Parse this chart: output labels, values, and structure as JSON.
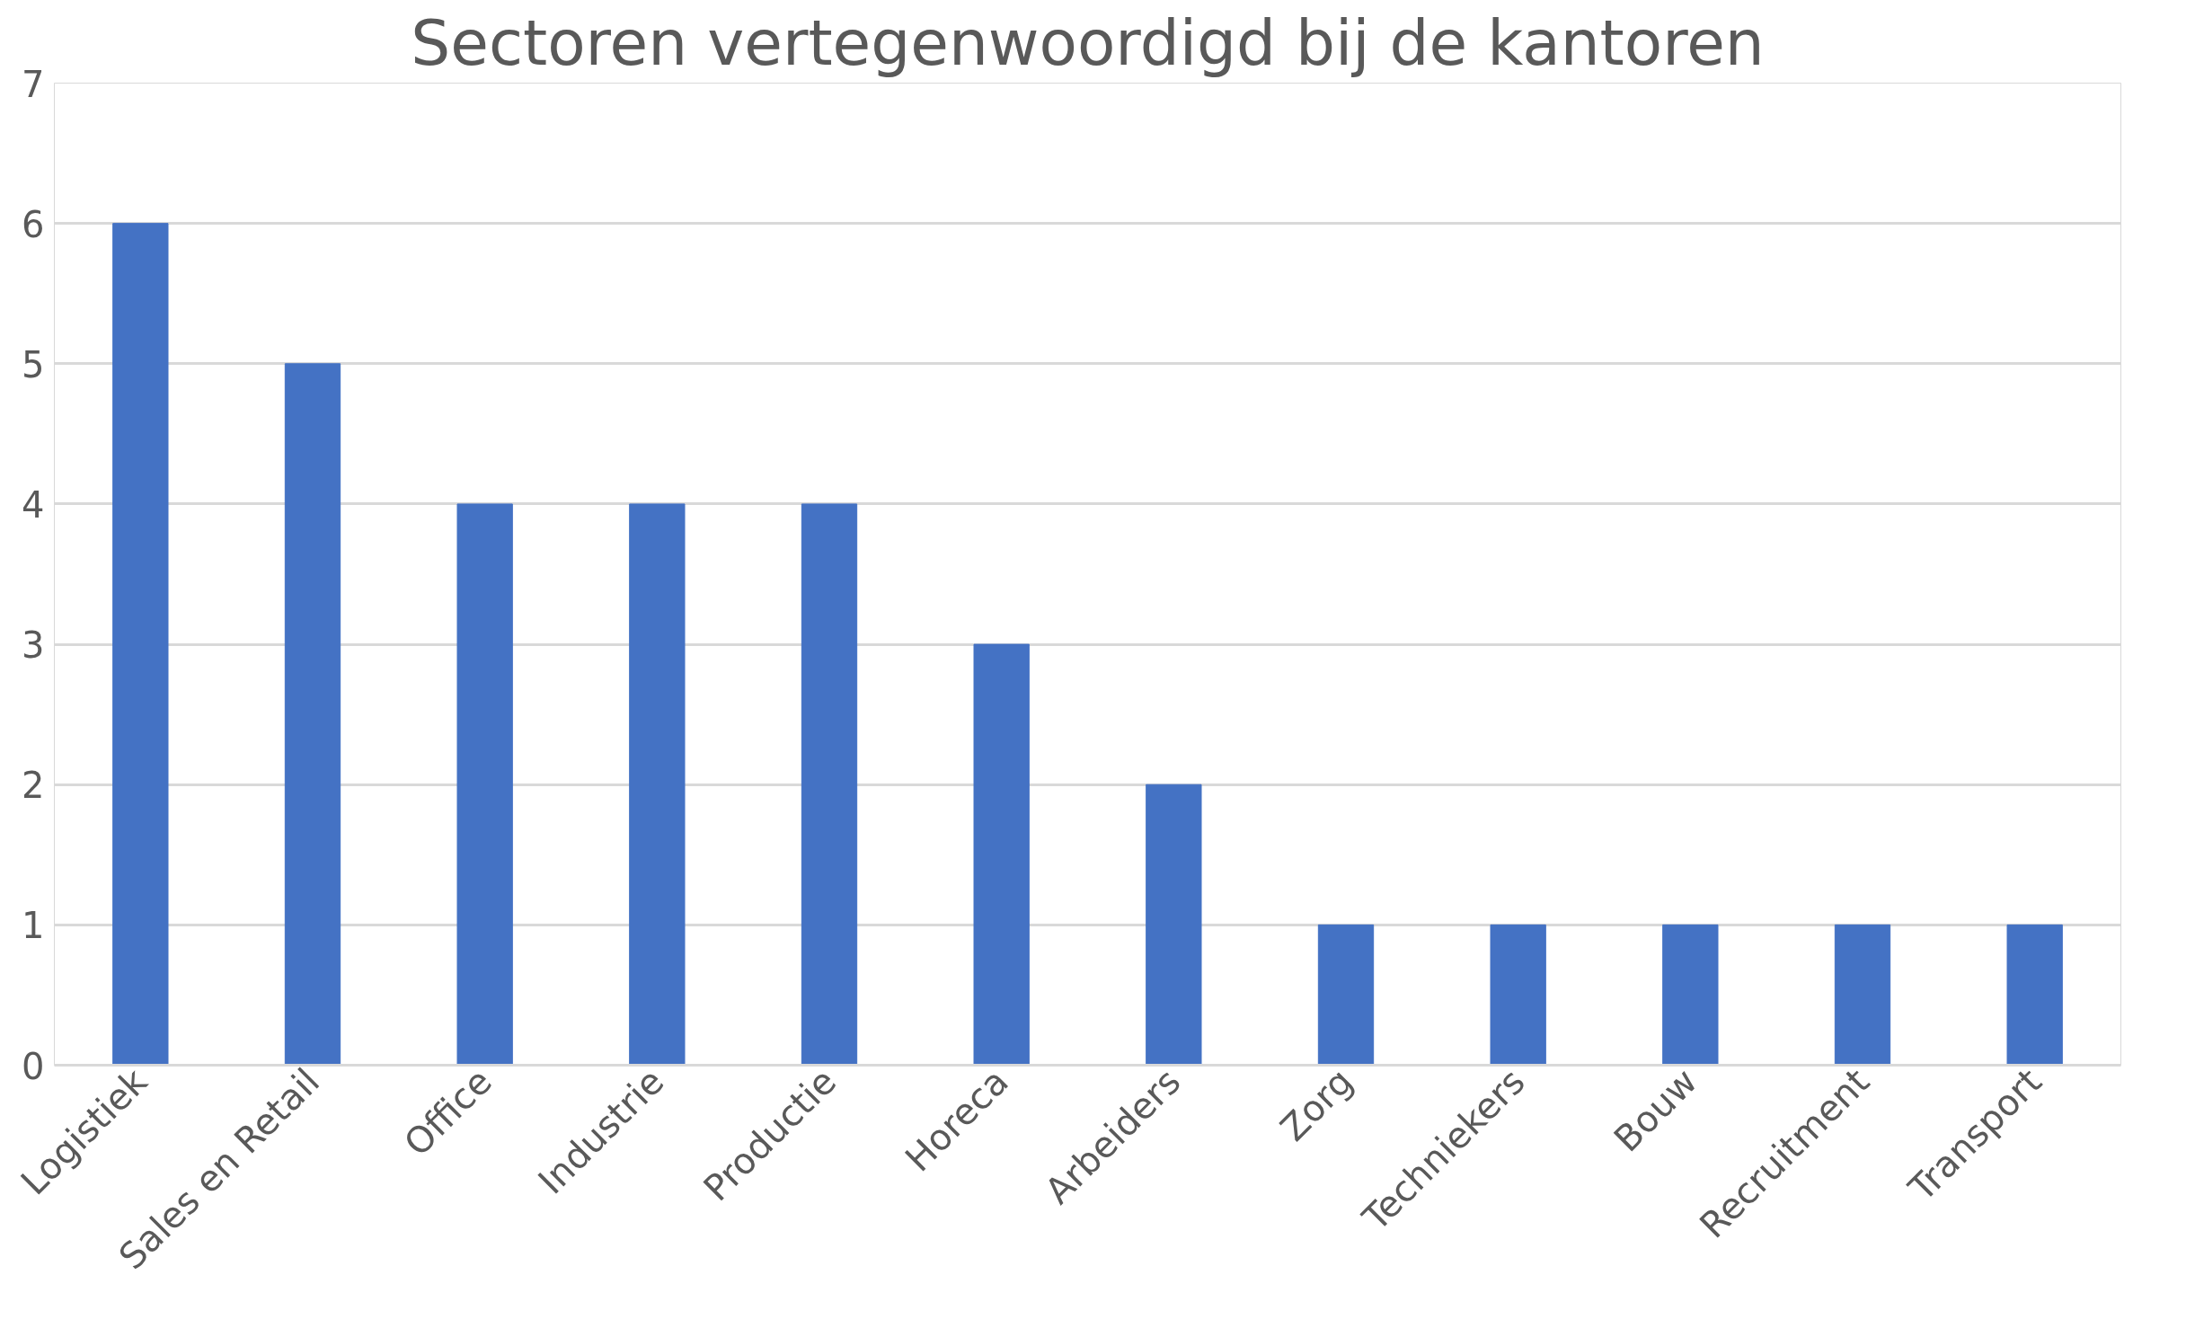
{
  "chart_data": {
    "type": "bar",
    "title": "Sectoren vertegenwoordigd bij de kantoren",
    "categories": [
      "Logistiek",
      "Sales en Retail",
      "Office",
      "Industrie",
      "Productie",
      "Horeca",
      "Arbeiders",
      "Zorg",
      "Techniekers",
      "Bouw",
      "Recruitment",
      "Transport"
    ],
    "values": [
      6,
      5,
      4,
      4,
      4,
      3,
      2,
      1,
      1,
      1,
      1,
      1
    ],
    "color": "#4472c4",
    "ylim": [
      0,
      7
    ],
    "yticks": [
      0,
      1,
      2,
      3,
      4,
      5,
      6,
      7
    ],
    "grid": "y"
  }
}
